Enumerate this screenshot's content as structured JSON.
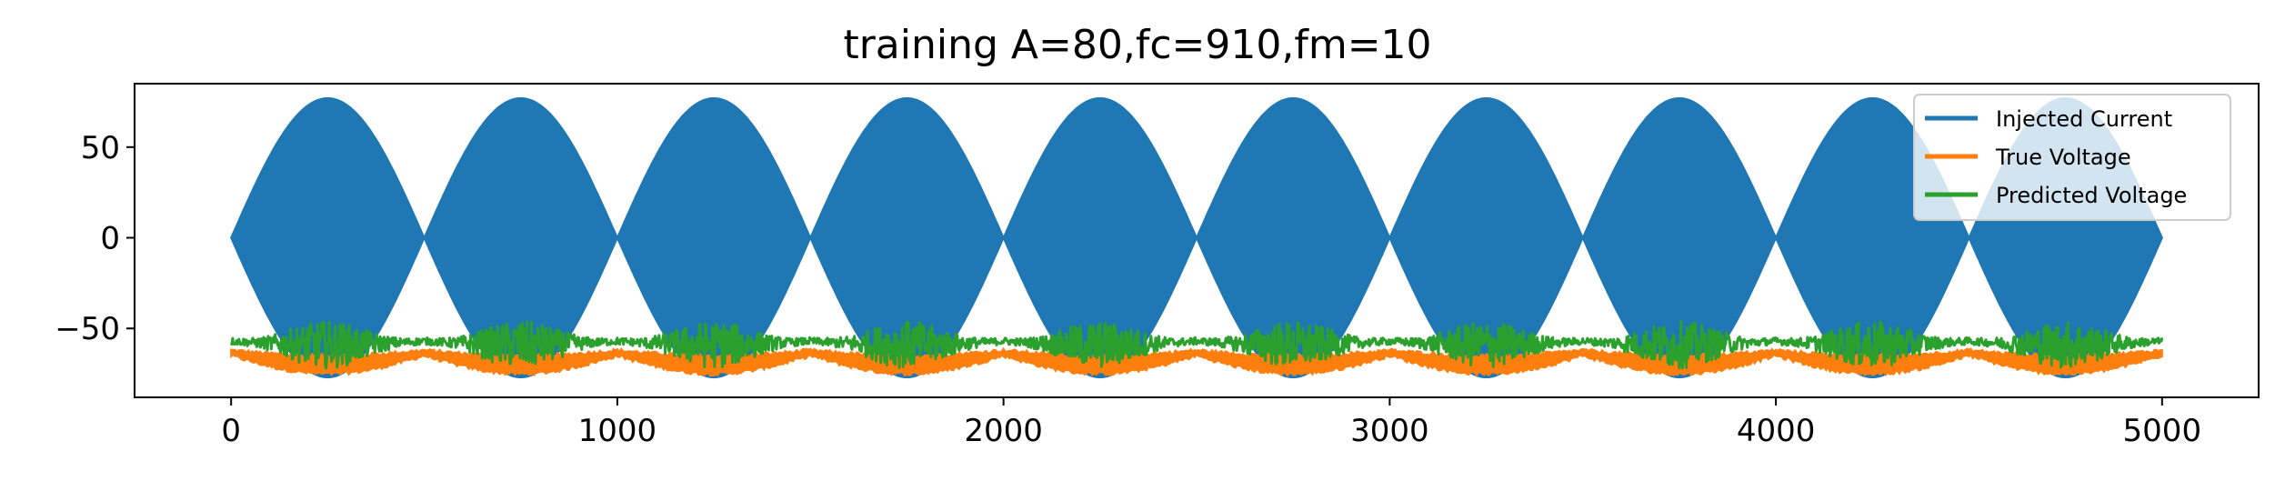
{
  "chart_data": {
    "type": "line",
    "title": "training A=80,fc=910,fm=10",
    "xlabel": "",
    "ylabel": "",
    "xlim": [
      -250,
      5250
    ],
    "ylim": [
      -88,
      85
    ],
    "x_ticks": [
      0,
      1000,
      2000,
      3000,
      4000,
      5000
    ],
    "x_tick_labels": [
      "0",
      "1000",
      "2000",
      "3000",
      "4000",
      "5000"
    ],
    "y_ticks": [
      50,
      0,
      -50
    ],
    "y_tick_labels": [
      "50",
      "0",
      "−50"
    ],
    "grid": false,
    "legend_position": "top-right",
    "sample_count": 5000,
    "series": [
      {
        "name": "Injected Current",
        "color": "#1f77b4",
        "description": "AM signal: 80·sin(2π·10·t)·sin(2π·910·t), envelope peaks ±77, lobes every 500 samples",
        "amplitude": 80,
        "carrier_frequency": 910,
        "modulation_frequency": 10
      },
      {
        "name": "True Voltage",
        "color": "#ff7f0e",
        "range": [
          -77,
          -61
        ]
      },
      {
        "name": "Predicted Voltage",
        "color": "#2ca02c",
        "range": [
          -72,
          -42
        ]
      }
    ]
  }
}
